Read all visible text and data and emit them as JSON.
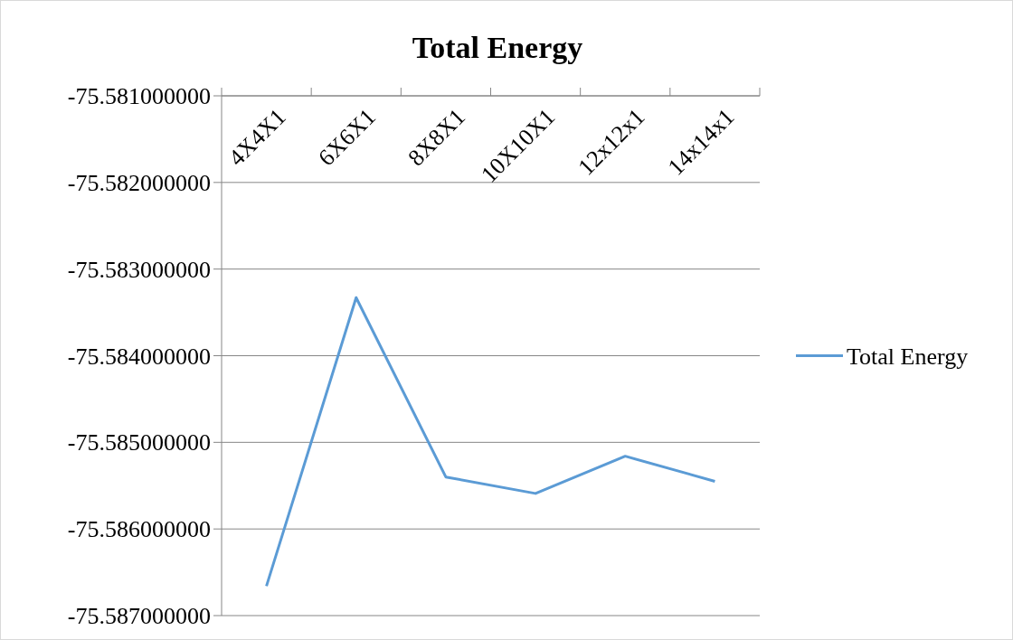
{
  "chart_data": {
    "type": "line",
    "title": "Total Energy",
    "categories": [
      "4X4X1",
      "6X6X1",
      "8X8X1",
      "10X10X1",
      "12x12x1",
      "14x14x1"
    ],
    "series": [
      {
        "name": "Total Energy",
        "color": "#5b9bd5",
        "values": [
          -75.58666,
          -75.58333,
          -75.5854,
          -75.58559,
          -75.58516,
          -75.58545
        ]
      }
    ],
    "ylim": [
      -75.587,
      -75.581
    ],
    "yticks": [
      {
        "value": -75.581,
        "label": "-75.581000000"
      },
      {
        "value": -75.582,
        "label": "-75.582000000"
      },
      {
        "value": -75.583,
        "label": "-75.583000000"
      },
      {
        "value": -75.584,
        "label": "-75.584000000"
      },
      {
        "value": -75.585,
        "label": "-75.585000000"
      },
      {
        "value": -75.586,
        "label": "-75.586000000"
      },
      {
        "value": -75.587,
        "label": "-75.587000000"
      }
    ],
    "grid": "y",
    "legend": "right",
    "marker": "none"
  }
}
